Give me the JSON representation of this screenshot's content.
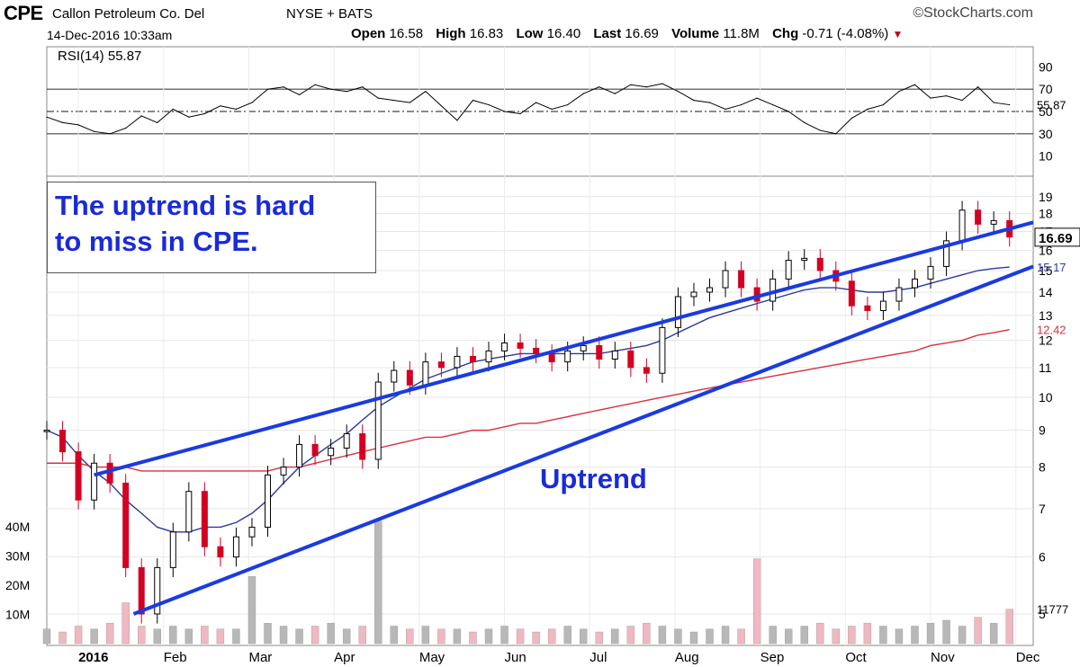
{
  "header": {
    "symbol": "CPE",
    "company": "Callon Petroleum Co. Del",
    "exchange": "NYSE + BATS",
    "brand": "©StockCharts.com",
    "timestamp": "14-Dec-2016 10:33am",
    "open_label": "Open",
    "open_value": "16.58",
    "high_label": "High",
    "high_value": "16.83",
    "low_label": "Low",
    "low_value": "16.40",
    "last_label": "Last",
    "last_value": "16.69",
    "volume_label": "Volume",
    "volume_value": "11.8M",
    "chg_label": "Chg",
    "chg_value": "-0.71 (-4.08%)",
    "chg_arrow": "▼"
  },
  "annotations": {
    "box_text_line1": "The uptrend is hard",
    "box_text_line2": "to miss in CPE.",
    "uptrend_label": "Uptrend"
  },
  "colors": {
    "up_candle": "#000000",
    "down_candle": "#d40022",
    "ma_short": "#2a3a9a",
    "ma_long": "#d83040",
    "trendline": "#1a3be0",
    "annotation_text": "#1a2bd8",
    "volume_up": "#b8b8b8",
    "volume_down": "#f0b8c0",
    "rsi_line": "#000000",
    "rsi_fill": "#3a8a3a"
  },
  "chart_data": [
    {
      "type": "line",
      "name": "RSI(14) 55.87",
      "indicator_label": "RSI(14) 55.87",
      "ylim": [
        0,
        100
      ],
      "y_ticks": [
        "90",
        "70",
        "50",
        "30",
        "10"
      ],
      "reference_lines": [
        70,
        50,
        30
      ],
      "current_value": "55.87",
      "x": [
        0,
        4,
        8,
        12,
        16,
        20,
        24,
        28,
        32,
        36,
        40,
        44,
        48,
        52,
        56,
        60,
        64,
        68,
        72,
        76,
        80,
        84,
        88,
        92,
        96,
        100,
        104,
        108,
        112,
        116,
        120,
        124,
        128,
        132,
        136,
        140,
        144,
        148,
        152,
        156,
        160,
        164,
        168,
        172,
        176,
        180,
        184,
        188,
        192,
        196,
        200,
        204,
        208,
        212,
        216,
        220,
        224,
        228,
        232,
        236,
        240,
        244
      ],
      "values": [
        45,
        40,
        38,
        32,
        30,
        35,
        46,
        40,
        52,
        45,
        48,
        55,
        52,
        58,
        70,
        72,
        65,
        74,
        70,
        68,
        72,
        62,
        60,
        58,
        68,
        55,
        42,
        60,
        56,
        50,
        48,
        58,
        52,
        56,
        66,
        72,
        66,
        74,
        72,
        75,
        68,
        60,
        58,
        52,
        56,
        62,
        56,
        50,
        40,
        33,
        30,
        44,
        52,
        56,
        68,
        74,
        62,
        64,
        60,
        72,
        58,
        56
      ]
    },
    {
      "type": "candlestick",
      "x_ticks": [
        "2016",
        "Feb",
        "Mar",
        "Apr",
        "May",
        "Jun",
        "Jul",
        "Aug",
        "Sep",
        "Oct",
        "Nov",
        "Dec"
      ],
      "y_ticks": [
        "19",
        "18",
        "17",
        "16",
        "15",
        "14",
        "13",
        "12",
        "11",
        "10",
        "9",
        "8",
        "7",
        "6",
        "5"
      ],
      "y_scale": "log",
      "ylim": [
        4.6,
        19.6
      ],
      "last_price_label": "16.69",
      "ma_short_label": "15.17",
      "ma_long_label": "12.42",
      "x": [
        0,
        4,
        8,
        12,
        16,
        20,
        24,
        28,
        32,
        36,
        40,
        44,
        48,
        52,
        56,
        60,
        64,
        68,
        72,
        76,
        80,
        84,
        88,
        92,
        96,
        100,
        104,
        108,
        112,
        116,
        120,
        124,
        128,
        132,
        136,
        140,
        144,
        148,
        152,
        156,
        160,
        164,
        168,
        172,
        176,
        180,
        184,
        188,
        192,
        196,
        200,
        204,
        208,
        212,
        216,
        220,
        224,
        228,
        232,
        236,
        240,
        244
      ],
      "close": [
        9.0,
        8.4,
        7.2,
        8.1,
        7.6,
        5.8,
        5.0,
        5.8,
        6.5,
        7.4,
        6.2,
        6.0,
        6.4,
        6.6,
        7.8,
        8.0,
        8.6,
        8.3,
        8.5,
        8.9,
        8.2,
        10.5,
        10.9,
        10.4,
        11.2,
        11.0,
        11.4,
        11.2,
        11.6,
        11.9,
        11.7,
        11.5,
        11.2,
        11.6,
        11.8,
        11.3,
        11.6,
        11.0,
        10.8,
        12.5,
        13.8,
        14.0,
        14.2,
        15.0,
        14.2,
        13.6,
        14.6,
        15.5,
        15.6,
        15.0,
        14.5,
        13.4,
        13.2,
        13.6,
        14.2,
        14.6,
        15.2,
        16.5,
        18.2,
        17.4,
        17.6,
        16.7
      ],
      "ma_short": [
        9.0,
        8.8,
        8.3,
        7.9,
        7.6,
        7.2,
        6.9,
        6.6,
        6.5,
        6.5,
        6.6,
        6.6,
        6.7,
        6.9,
        7.2,
        7.6,
        8.0,
        8.3,
        8.6,
        8.9,
        9.3,
        9.7,
        10.0,
        10.3,
        10.6,
        10.8,
        11.0,
        11.2,
        11.3,
        11.4,
        11.5,
        11.5,
        11.5,
        11.5,
        11.5,
        11.5,
        11.6,
        11.7,
        11.8,
        12.0,
        12.3,
        12.6,
        12.9,
        13.1,
        13.3,
        13.5,
        13.7,
        13.9,
        14.1,
        14.2,
        14.2,
        14.1,
        14.0,
        14.0,
        14.1,
        14.2,
        14.4,
        14.6,
        14.8,
        15.0,
        15.1,
        15.17
      ],
      "ma_long": [
        8.1,
        8.1,
        8.1,
        8.0,
        8.0,
        8.0,
        7.9,
        7.9,
        7.9,
        7.9,
        7.9,
        7.9,
        7.9,
        7.9,
        7.9,
        8.0,
        8.0,
        8.1,
        8.2,
        8.3,
        8.4,
        8.5,
        8.6,
        8.7,
        8.8,
        8.8,
        8.9,
        9.0,
        9.0,
        9.1,
        9.2,
        9.2,
        9.3,
        9.4,
        9.5,
        9.6,
        9.7,
        9.8,
        9.9,
        10.0,
        10.1,
        10.2,
        10.3,
        10.4,
        10.5,
        10.6,
        10.7,
        10.8,
        10.9,
        11.0,
        11.1,
        11.2,
        11.3,
        11.4,
        11.5,
        11.6,
        11.8,
        11.9,
        12.0,
        12.2,
        12.3,
        12.42
      ],
      "trend_channel": {
        "upper": {
          "from": [
            12,
            7.8
          ],
          "to": [
            250,
            17.5
          ]
        },
        "lower": {
          "from": [
            22,
            5.0
          ],
          "to": [
            250,
            15.2
          ]
        }
      }
    },
    {
      "type": "bar",
      "name": "Volume",
      "y_ticks": [
        "40M",
        "30M",
        "20M",
        "10M"
      ],
      "ylim": [
        0,
        48
      ],
      "current_value": "11777",
      "x": [
        0,
        4,
        8,
        12,
        16,
        20,
        24,
        28,
        32,
        36,
        40,
        44,
        48,
        52,
        56,
        60,
        64,
        68,
        72,
        76,
        80,
        84,
        88,
        92,
        96,
        100,
        104,
        108,
        112,
        116,
        120,
        124,
        128,
        132,
        136,
        140,
        144,
        148,
        152,
        156,
        160,
        164,
        168,
        172,
        176,
        180,
        184,
        188,
        192,
        196,
        200,
        204,
        208,
        212,
        216,
        220,
        224,
        228,
        232,
        236,
        240,
        244
      ],
      "values": [
        5,
        4,
        6,
        5,
        7,
        14,
        6,
        5,
        6,
        5,
        6,
        5,
        5,
        23,
        7,
        6,
        5,
        6,
        7,
        5,
        6,
        42,
        6,
        5,
        6,
        5,
        5,
        4,
        5,
        6,
        5,
        4,
        5,
        6,
        5,
        4,
        5,
        6,
        7,
        6,
        5,
        4,
        5,
        6,
        5,
        29,
        6,
        5,
        6,
        7,
        5,
        6,
        7,
        6,
        5,
        6,
        7,
        8,
        6,
        9,
        7,
        11.8
      ]
    }
  ]
}
